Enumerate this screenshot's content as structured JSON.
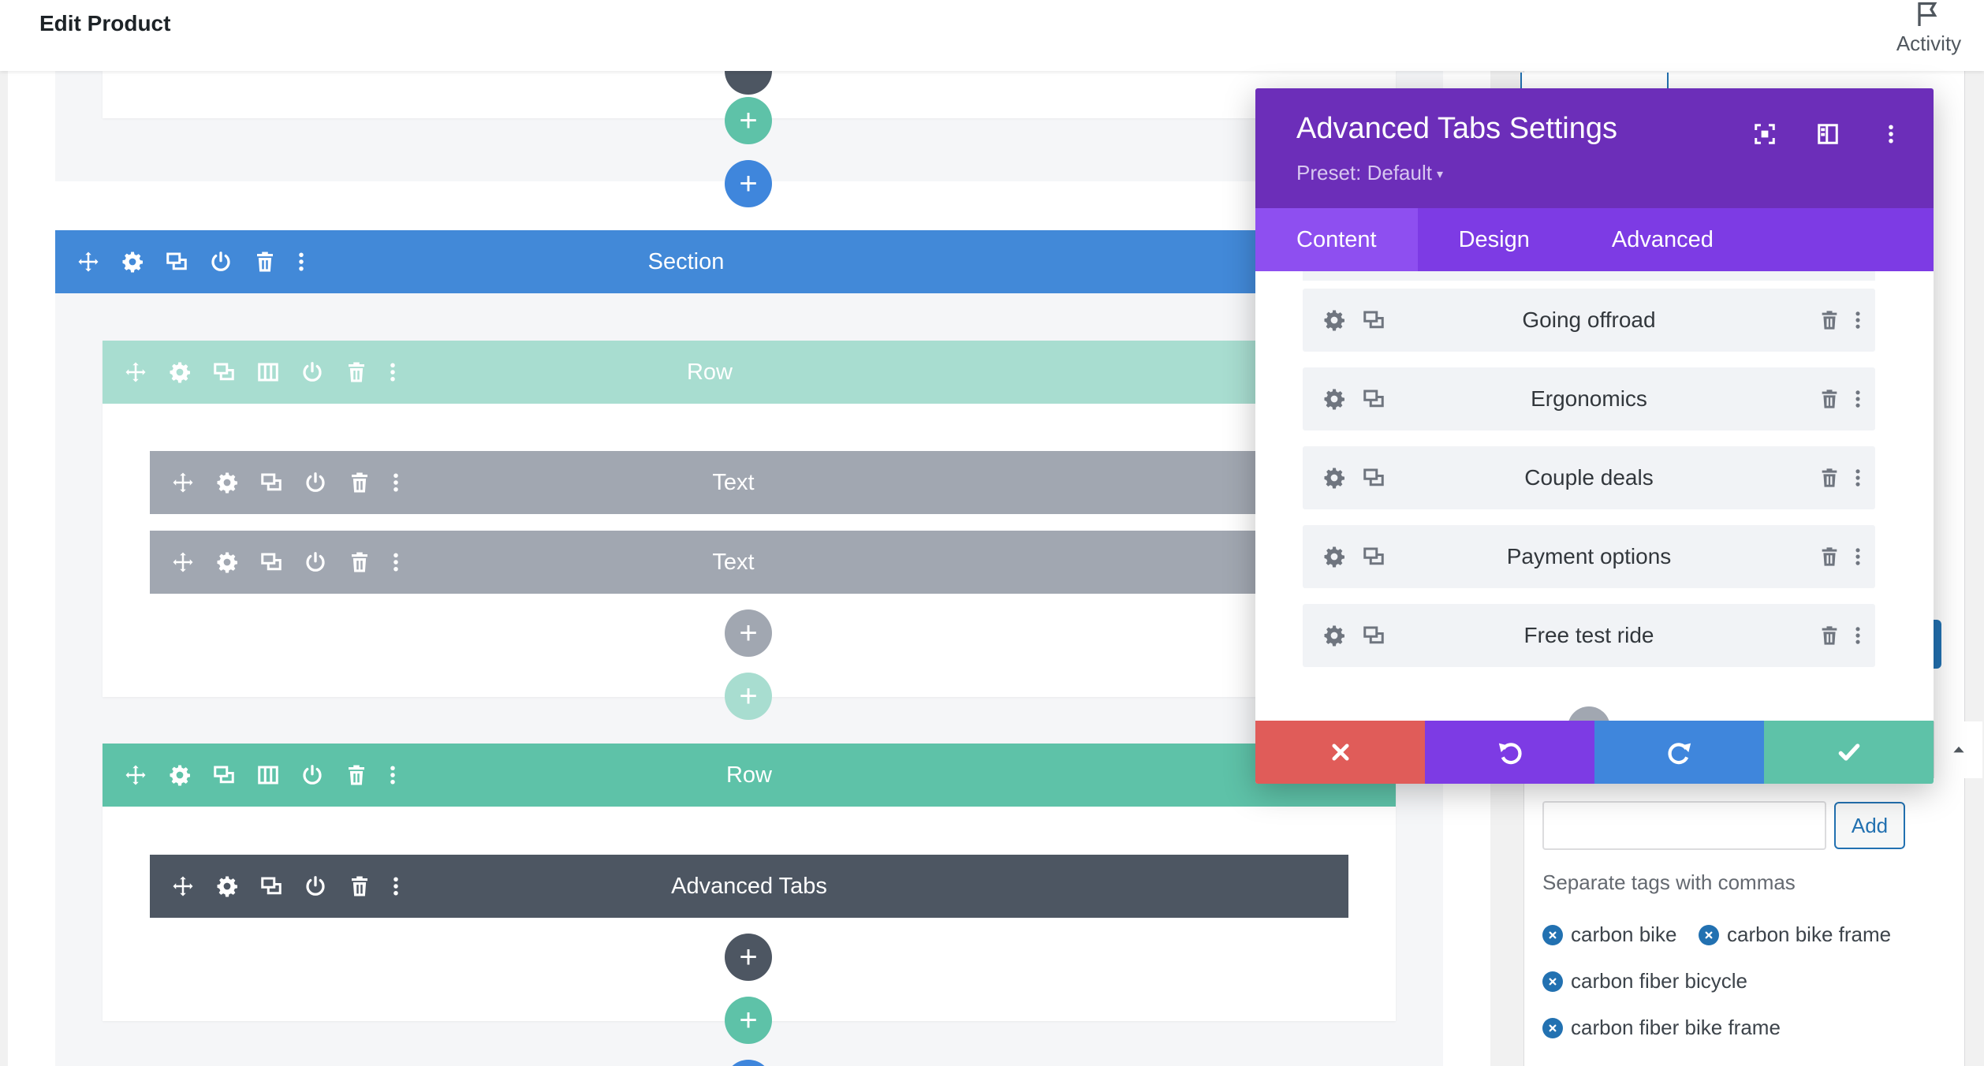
{
  "topbar": {
    "title": "Edit Product",
    "activity_label": "Activity"
  },
  "builder": {
    "section_label": "Section",
    "row1_label": "Row",
    "text1_label": "Text",
    "text2_label": "Text",
    "row2_label": "Row",
    "advanced_tabs_label": "Advanced Tabs",
    "plus_symbol": "+"
  },
  "modal": {
    "title": "Advanced Tabs Settings",
    "preset": "Preset: Default",
    "tabs": [
      {
        "label": "Content",
        "active": true
      },
      {
        "label": "Design",
        "active": false
      },
      {
        "label": "Advanced",
        "active": false
      }
    ],
    "items": [
      {
        "label": "Going offroad"
      },
      {
        "label": "Ergonomics"
      },
      {
        "label": "Couple deals"
      },
      {
        "label": "Payment options"
      },
      {
        "label": "Free test ride"
      }
    ]
  },
  "tags_box": {
    "add_label": "Add",
    "hint": "Separate tags with commas",
    "tags": [
      "carbon bike",
      "carbon bike frame",
      "carbon fiber bicycle",
      "carbon fiber bike frame"
    ]
  },
  "colors": {
    "section": "#4289d8",
    "row": "#5ec2a8",
    "text_module": "#a1a7b1",
    "advanced_tabs_module": "#4d5662",
    "modal_header": "#6c2eb9",
    "modal_tabs": "#7d3be4",
    "cancel": "#e05c59",
    "redo": "#3f86dc",
    "save": "#5ec2a8"
  }
}
